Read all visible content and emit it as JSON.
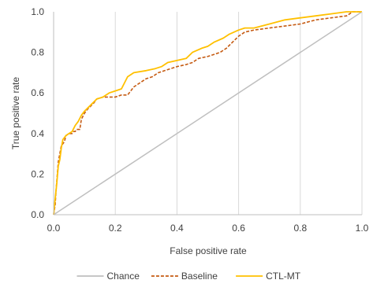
{
  "chart_data": {
    "type": "line",
    "title": "",
    "xlabel": "False positive rate",
    "ylabel": "True positive rate",
    "xlim": [
      0,
      1
    ],
    "ylim": [
      0,
      1
    ],
    "xticks": [
      "0.0",
      "0.2",
      "0.4",
      "0.6",
      "0.8",
      "1.0"
    ],
    "yticks": [
      "0.0",
      "0.2",
      "0.4",
      "0.6",
      "0.8",
      "1.0"
    ],
    "grid": "vertical",
    "legend_position": "bottom",
    "series": [
      {
        "name": "Chance",
        "color": "#bfbfbf",
        "dash": "solid",
        "points": [
          [
            0,
            0
          ],
          [
            1,
            1
          ]
        ]
      },
      {
        "name": "Baseline",
        "color": "#c55a11",
        "dash": "dashed",
        "points": [
          [
            0.0,
            0.0
          ],
          [
            0.005,
            0.05
          ],
          [
            0.008,
            0.12
          ],
          [
            0.012,
            0.2
          ],
          [
            0.015,
            0.26
          ],
          [
            0.02,
            0.3
          ],
          [
            0.025,
            0.34
          ],
          [
            0.035,
            0.36
          ],
          [
            0.04,
            0.39
          ],
          [
            0.05,
            0.4
          ],
          [
            0.06,
            0.4
          ],
          [
            0.065,
            0.41
          ],
          [
            0.07,
            0.41
          ],
          [
            0.075,
            0.42
          ],
          [
            0.085,
            0.42
          ],
          [
            0.09,
            0.47
          ],
          [
            0.1,
            0.5
          ],
          [
            0.11,
            0.52
          ],
          [
            0.13,
            0.55
          ],
          [
            0.14,
            0.57
          ],
          [
            0.16,
            0.58
          ],
          [
            0.2,
            0.58
          ],
          [
            0.22,
            0.59
          ],
          [
            0.24,
            0.59
          ],
          [
            0.25,
            0.61
          ],
          [
            0.26,
            0.63
          ],
          [
            0.28,
            0.65
          ],
          [
            0.3,
            0.67
          ],
          [
            0.32,
            0.68
          ],
          [
            0.34,
            0.7
          ],
          [
            0.36,
            0.71
          ],
          [
            0.38,
            0.72
          ],
          [
            0.4,
            0.73
          ],
          [
            0.43,
            0.74
          ],
          [
            0.45,
            0.75
          ],
          [
            0.47,
            0.77
          ],
          [
            0.5,
            0.78
          ],
          [
            0.52,
            0.79
          ],
          [
            0.54,
            0.8
          ],
          [
            0.56,
            0.82
          ],
          [
            0.58,
            0.85
          ],
          [
            0.6,
            0.88
          ],
          [
            0.62,
            0.9
          ],
          [
            0.65,
            0.91
          ],
          [
            0.7,
            0.92
          ],
          [
            0.75,
            0.93
          ],
          [
            0.8,
            0.94
          ],
          [
            0.85,
            0.96
          ],
          [
            0.9,
            0.97
          ],
          [
            0.95,
            0.98
          ],
          [
            0.97,
            1.0
          ],
          [
            1.0,
            1.0
          ]
        ]
      },
      {
        "name": "CTL-MT",
        "color": "#ffc000",
        "dash": "solid",
        "points": [
          [
            0.0,
            0.0
          ],
          [
            0.005,
            0.08
          ],
          [
            0.01,
            0.15
          ],
          [
            0.015,
            0.24
          ],
          [
            0.02,
            0.27
          ],
          [
            0.025,
            0.33
          ],
          [
            0.03,
            0.37
          ],
          [
            0.04,
            0.39
          ],
          [
            0.05,
            0.4
          ],
          [
            0.06,
            0.41
          ],
          [
            0.07,
            0.44
          ],
          [
            0.08,
            0.46
          ],
          [
            0.09,
            0.49
          ],
          [
            0.1,
            0.51
          ],
          [
            0.12,
            0.54
          ],
          [
            0.14,
            0.57
          ],
          [
            0.16,
            0.58
          ],
          [
            0.18,
            0.6
          ],
          [
            0.2,
            0.61
          ],
          [
            0.22,
            0.62
          ],
          [
            0.24,
            0.68
          ],
          [
            0.26,
            0.7
          ],
          [
            0.3,
            0.71
          ],
          [
            0.33,
            0.72
          ],
          [
            0.35,
            0.73
          ],
          [
            0.37,
            0.75
          ],
          [
            0.4,
            0.76
          ],
          [
            0.43,
            0.77
          ],
          [
            0.45,
            0.8
          ],
          [
            0.48,
            0.82
          ],
          [
            0.5,
            0.83
          ],
          [
            0.52,
            0.85
          ],
          [
            0.55,
            0.87
          ],
          [
            0.57,
            0.89
          ],
          [
            0.6,
            0.91
          ],
          [
            0.62,
            0.92
          ],
          [
            0.65,
            0.92
          ],
          [
            0.7,
            0.94
          ],
          [
            0.75,
            0.96
          ],
          [
            0.8,
            0.97
          ],
          [
            0.85,
            0.98
          ],
          [
            0.9,
            0.99
          ],
          [
            0.95,
            1.0
          ],
          [
            1.0,
            1.0
          ]
        ]
      }
    ]
  }
}
